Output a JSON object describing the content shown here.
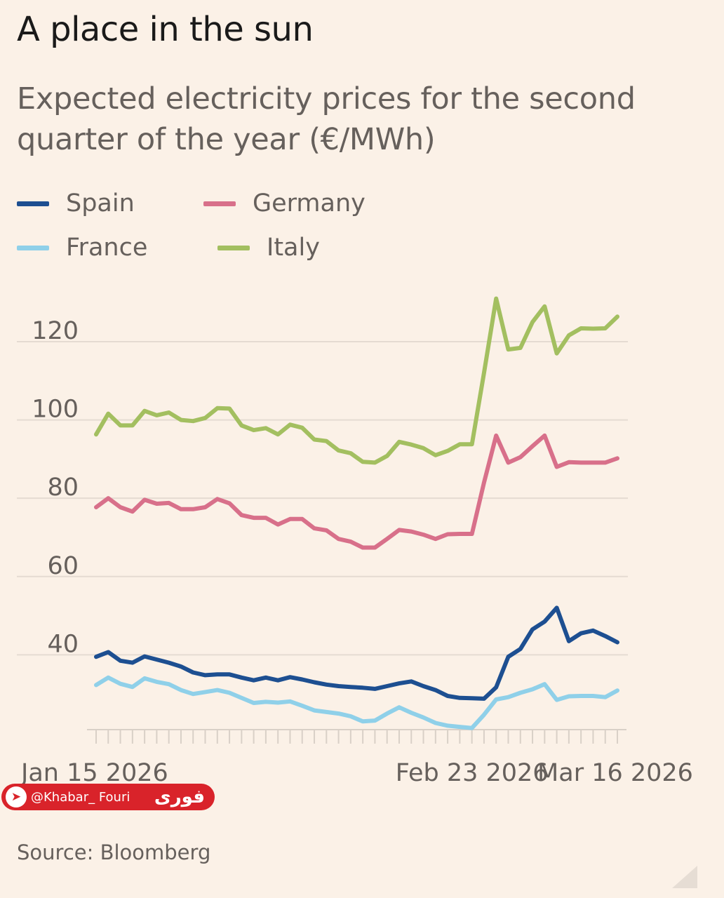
{
  "header": {
    "title": "A place in the sun",
    "subtitle": "Expected electricity prices for the second quarter of the year (€/MWh)"
  },
  "legend": {
    "items": [
      {
        "label": "Spain",
        "color": "#1d4f91"
      },
      {
        "label": "Germany",
        "color": "#d8708a"
      },
      {
        "label": "France",
        "color": "#8fd0e9"
      },
      {
        "label": "Italy",
        "color": "#a3bf60"
      }
    ]
  },
  "source": "Source: Bloomberg",
  "watermark": {
    "handle": "@Khabar_ Fouri",
    "logo": "فوری",
    "icon": "telegram-icon"
  },
  "chart_data": {
    "type": "line",
    "x_start": "2026-01-15",
    "x_tick_labels": [
      "Jan 15 2026",
      "Feb 23 2026",
      "Mar 16 2026"
    ],
    "y_ticks": [
      40,
      60,
      80,
      100,
      120
    ],
    "ylim": [
      20,
      132
    ],
    "grid": true,
    "legend_position": "top-left",
    "series": [
      {
        "name": "Spain",
        "color": "#1d4f91",
        "values": [
          39.5,
          40.7,
          38.5,
          38,
          39.6,
          38.8,
          38,
          37,
          35.5,
          34.8,
          35,
          35,
          34.2,
          33.5,
          34.2,
          33.5,
          34.3,
          33.7,
          33,
          32.4,
          32,
          31.8,
          31.6,
          31.3,
          32,
          32.7,
          33.2,
          32,
          31,
          29.5,
          29,
          28.9,
          28.8,
          31.7,
          39.5,
          41.5,
          46.5,
          48.5,
          52,
          43.5,
          45.5,
          46.2,
          44.8,
          43.2
        ]
      },
      {
        "name": "Germany",
        "color": "#d8708a",
        "values": [
          77.7,
          80,
          77.7,
          76.6,
          79.6,
          78.6,
          78.8,
          77.2,
          77.2,
          77.7,
          79.8,
          78.7,
          75.7,
          75,
          75,
          73.3,
          74.7,
          74.7,
          72.3,
          71.8,
          69.6,
          68.9,
          67.4,
          67.4,
          69.6,
          71.9,
          71.5,
          70.7,
          69.6,
          70.8,
          70.9,
          70.9,
          84,
          96,
          89.1,
          90.5,
          93.3,
          96,
          88,
          89.2,
          89.1,
          89.1,
          89.1,
          90.2
        ]
      },
      {
        "name": "France",
        "color": "#8fd0e9",
        "values": [
          32.3,
          34.2,
          32.6,
          31.8,
          34,
          33.1,
          32.5,
          31,
          30,
          30.5,
          31,
          30.3,
          29,
          27.7,
          28,
          27.8,
          28.1,
          27,
          25.8,
          25.4,
          25,
          24.3,
          23,
          23.2,
          25,
          26.6,
          25.2,
          24,
          22.6,
          21.9,
          21.6,
          21.3,
          24.7,
          28.6,
          29.2,
          30.3,
          31.2,
          32.5,
          28.5,
          29.4,
          29.5,
          29.5,
          29.2,
          30.9
        ]
      },
      {
        "name": "Italy",
        "color": "#a3bf60",
        "values": [
          96.3,
          101.6,
          98.6,
          98.6,
          102.3,
          101.2,
          101.9,
          100,
          99.7,
          100.5,
          103,
          102.9,
          98.6,
          97.4,
          97.9,
          96.3,
          98.8,
          98,
          95,
          94.6,
          92.2,
          91.5,
          89.3,
          89.1,
          90.8,
          94.4,
          93.7,
          92.8,
          91,
          92.1,
          93.8,
          93.8,
          112,
          131,
          118,
          118.4,
          125,
          129,
          117,
          121.6,
          123.4,
          123.3,
          123.4,
          126.4
        ]
      }
    ]
  }
}
